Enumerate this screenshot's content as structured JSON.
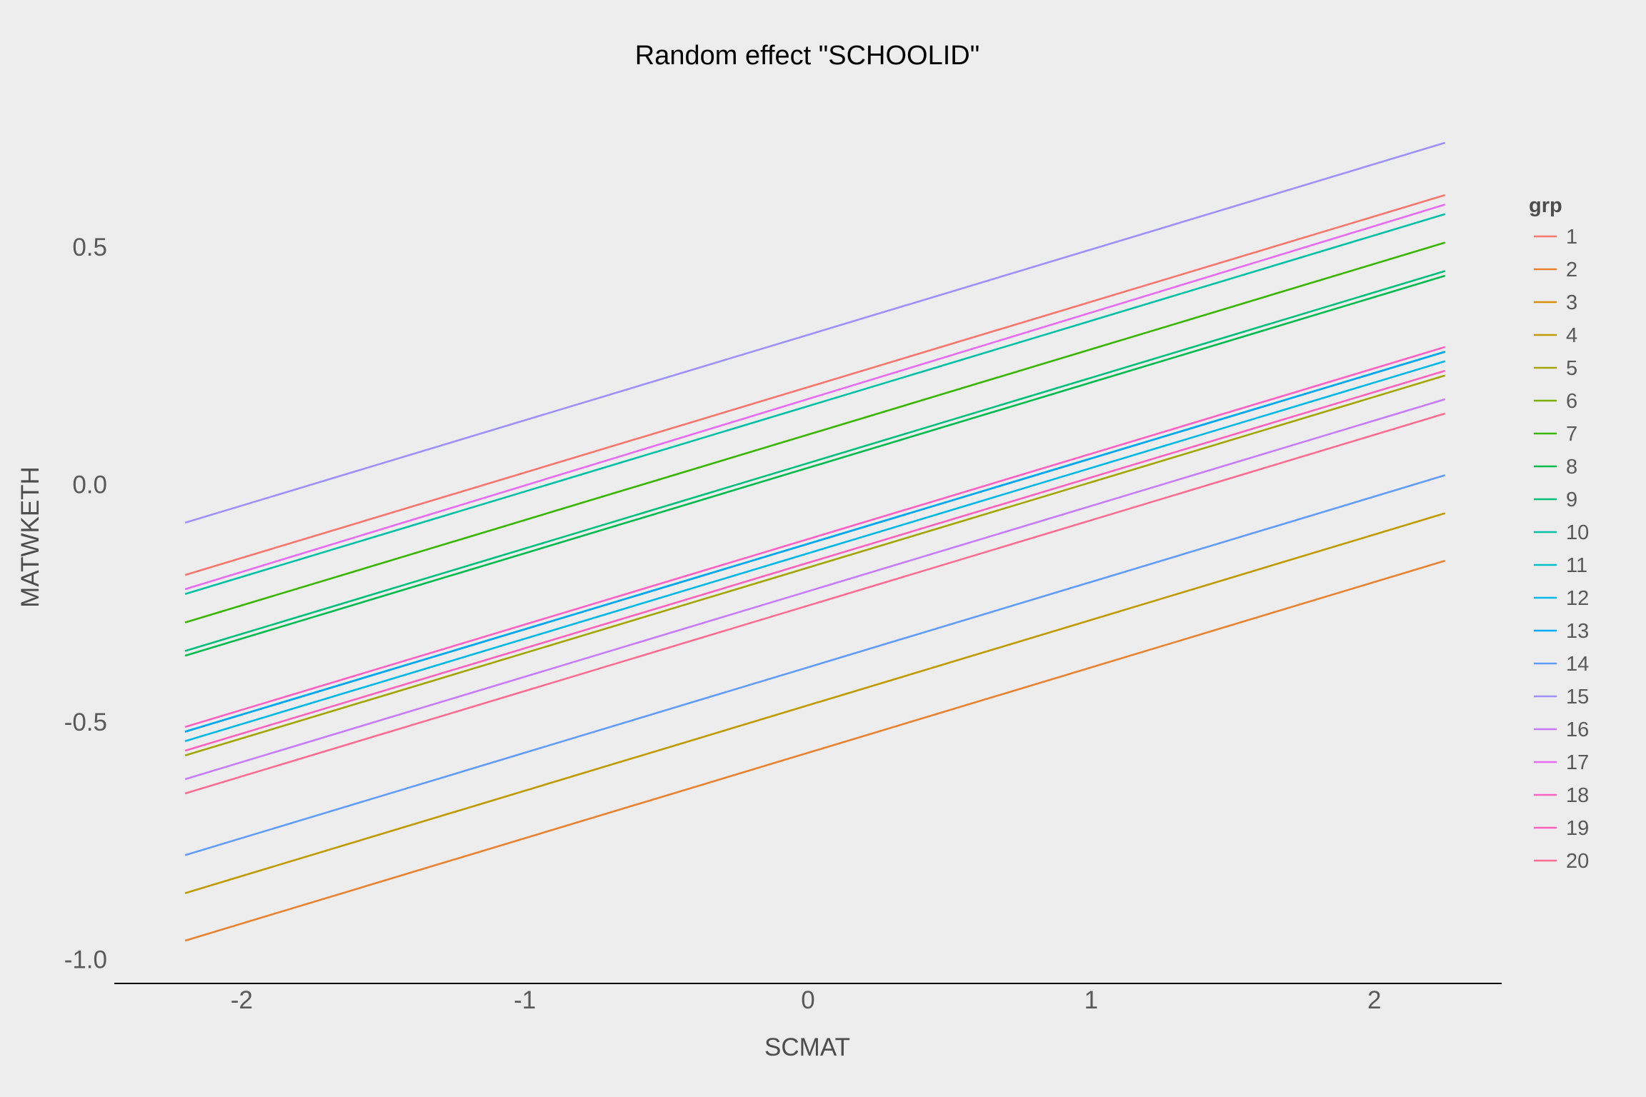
{
  "chart_data": {
    "type": "line",
    "title": "Random effect \"SCHOOLID\"",
    "xlabel": "SCMAT",
    "ylabel": "MATWKETH",
    "xlim": [
      -2.45,
      2.45
    ],
    "ylim": [
      -1.05,
      0.78
    ],
    "x_ticks": [
      -2,
      -1,
      0,
      1,
      2
    ],
    "x_tick_labels": [
      "-2",
      "-1",
      "0",
      "1",
      "2"
    ],
    "y_ticks": [
      -1.0,
      -0.5,
      0.0,
      0.5
    ],
    "y_tick_labels": [
      "-1.0",
      "-0.5",
      "0.0",
      "0.5"
    ],
    "grid": false,
    "legend": {
      "title": "grp",
      "position": "right"
    },
    "x": [
      -2.2,
      2.25
    ],
    "series": [
      {
        "name": "1",
        "color": "#F8766D",
        "values": [
          -0.19,
          0.61
        ]
      },
      {
        "name": "2",
        "color": "#EA8331",
        "values": [
          -0.96,
          -0.16
        ]
      },
      {
        "name": "3",
        "color": "#D89000",
        "values": [
          -0.52,
          0.28
        ]
      },
      {
        "name": "4",
        "color": "#C09B00",
        "values": [
          -0.86,
          -0.06
        ]
      },
      {
        "name": "5",
        "color": "#A3A500",
        "values": [
          -0.57,
          0.23
        ]
      },
      {
        "name": "6",
        "color": "#7CAE00",
        "values": [
          -0.52,
          0.28
        ]
      },
      {
        "name": "7",
        "color": "#39B600",
        "values": [
          -0.29,
          0.51
        ]
      },
      {
        "name": "8",
        "color": "#00BB4E",
        "values": [
          -0.36,
          0.44
        ]
      },
      {
        "name": "9",
        "color": "#00BF7D",
        "values": [
          -0.35,
          0.45
        ]
      },
      {
        "name": "10",
        "color": "#00C1A3",
        "values": [
          -0.23,
          0.57
        ]
      },
      {
        "name": "11",
        "color": "#00BFC4",
        "values": [
          -0.52,
          0.28
        ]
      },
      {
        "name": "12",
        "color": "#00B8E7",
        "values": [
          -0.54,
          0.26
        ]
      },
      {
        "name": "13",
        "color": "#00A9FF",
        "values": [
          -0.52,
          0.28
        ]
      },
      {
        "name": "14",
        "color": "#619CFF",
        "values": [
          -0.78,
          0.02
        ]
      },
      {
        "name": "15",
        "color": "#9E91FF",
        "values": [
          -0.08,
          0.72
        ]
      },
      {
        "name": "16",
        "color": "#C77CFF",
        "values": [
          -0.62,
          0.18
        ]
      },
      {
        "name": "17",
        "color": "#E76BF3",
        "values": [
          -0.22,
          0.59
        ]
      },
      {
        "name": "18",
        "color": "#FF61C3",
        "values": [
          -0.51,
          0.29
        ]
      },
      {
        "name": "19",
        "color": "#FF62BC",
        "values": [
          -0.56,
          0.24
        ]
      },
      {
        "name": "20",
        "color": "#FF6C91",
        "values": [
          -0.65,
          0.15
        ]
      }
    ]
  }
}
